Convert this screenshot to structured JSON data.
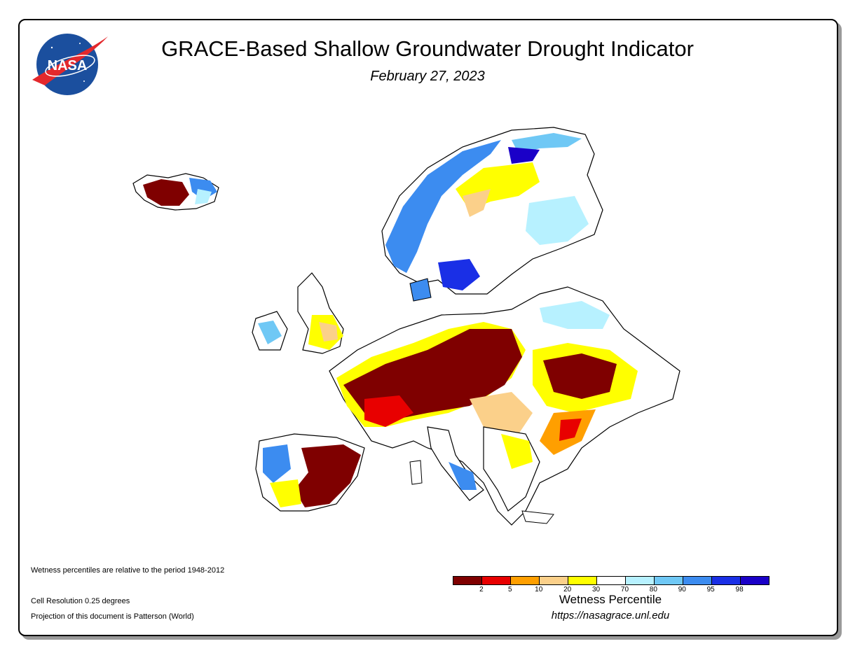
{
  "header": {
    "title": "GRACE-Based Shallow Groundwater Drought Indicator",
    "date": "February 27, 2023",
    "logo_text": "NASA"
  },
  "notes": {
    "period": "Wetness percentiles are relative to the period 1948-2012",
    "resolution": "Cell Resolution 0.25 degrees",
    "projection": "Projection of this document is Patterson (World)"
  },
  "legend": {
    "title": "Wetness Percentile",
    "url": "https://nasagrace.unl.edu",
    "colors": [
      "#7f0000",
      "#e80000",
      "#ff9f00",
      "#fbd08a",
      "#ffff00",
      "#ffffff",
      "#b7f1ff",
      "#6fc8f5",
      "#3c8cf0",
      "#1a2fe6",
      "#1a00c8"
    ],
    "ticks": [
      "2",
      "5",
      "10",
      "20",
      "30",
      "70",
      "80",
      "90",
      "95",
      "98"
    ]
  },
  "map": {
    "region": "Europe"
  }
}
